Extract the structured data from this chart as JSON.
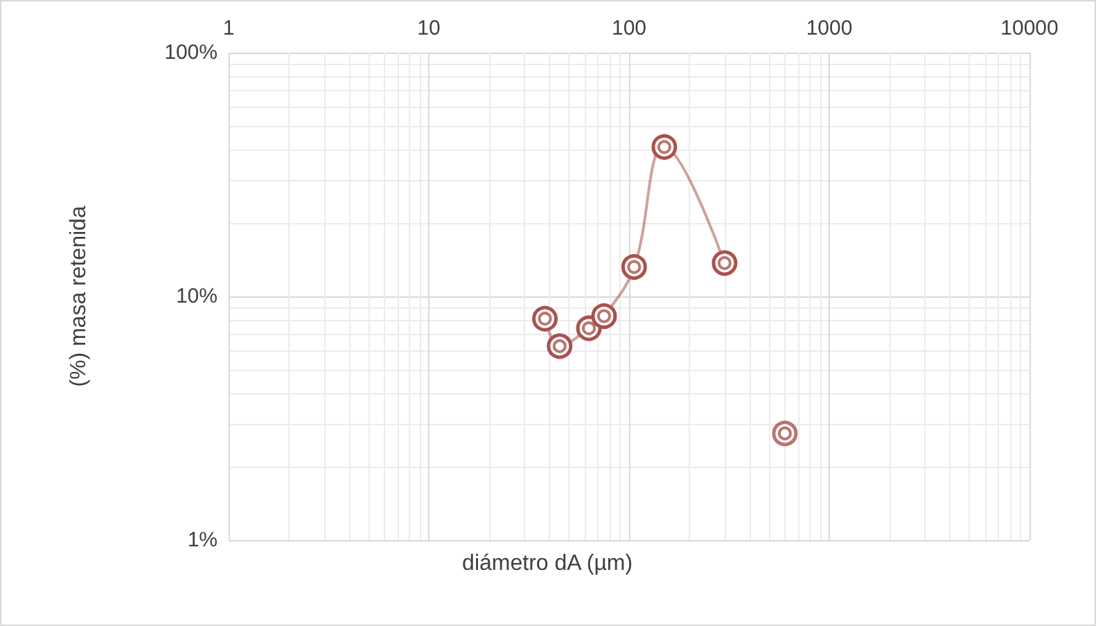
{
  "chart_data": {
    "type": "line",
    "xlabel": "diámetro dA (µm)",
    "ylabel": "(%) masa retenida",
    "log": "xy",
    "grid": true,
    "marker": "circle",
    "xlim": [
      1,
      10000
    ],
    "xticks": [
      1,
      10,
      100,
      1000,
      10000
    ],
    "ylim": [
      1,
      100
    ],
    "yticks": [
      {
        "value": 1,
        "label": "1%"
      },
      {
        "value": 10,
        "label": "10%"
      },
      {
        "value": 100,
        "label": "100%"
      }
    ],
    "series": [
      {
        "color": "#a9524e",
        "x": [
          38,
          45,
          63,
          75,
          106,
          150,
          300
        ],
        "values": [
          8.1,
          6.25,
          7.4,
          8.3,
          13.2,
          41,
          13.7
        ]
      },
      {
        "type": "scatter",
        "color": "#a9524e",
        "x": [
          600
        ],
        "values": [
          2.74
        ]
      }
    ]
  }
}
